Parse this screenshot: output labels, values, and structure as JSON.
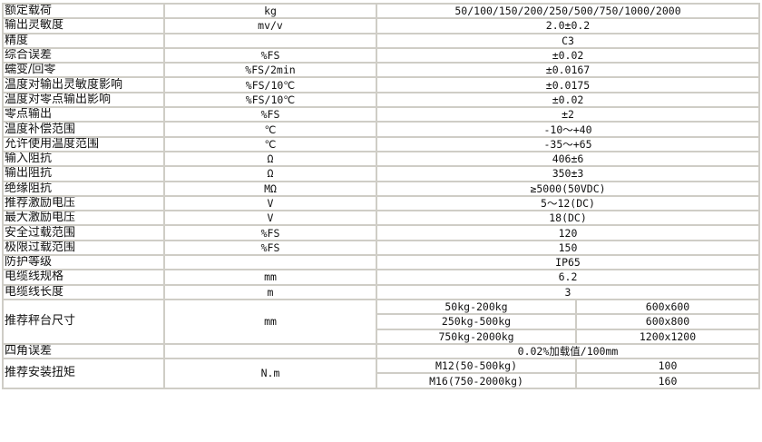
{
  "rows": [
    {
      "label": "额定载荷",
      "unit": "kg",
      "value": "50/100/150/200/250/500/750/1000/2000"
    },
    {
      "label": "输出灵敏度",
      "unit": "mv/v",
      "value": "2.0±0.2"
    },
    {
      "label": "精度",
      "unit": "",
      "value": "C3"
    },
    {
      "label": "综合误差",
      "unit": "%FS",
      "value": "±0.02"
    },
    {
      "label": "蠕变/回零",
      "unit": "%FS/2min",
      "value": "±0.0167"
    },
    {
      "label": "温度对输出灵敏度影响",
      "unit": "%FS/10℃",
      "value": "±0.0175"
    },
    {
      "label": "温度对零点输出影响",
      "unit": "%FS/10℃",
      "value": "±0.02"
    },
    {
      "label": "零点输出",
      "unit": "%FS",
      "value": "±2"
    },
    {
      "label": "温度补偿范围",
      "unit": "℃",
      "value": "-10～+40"
    },
    {
      "label": "允许使用温度范围",
      "unit": "℃",
      "value": "-35～+65"
    },
    {
      "label": "输入阻抗",
      "unit": "Ω",
      "value": "406±6"
    },
    {
      "label": "输出阻抗",
      "unit": "Ω",
      "value": "350±3"
    },
    {
      "label": "绝缘阻抗",
      "unit": "MΩ",
      "value": "≥5000(50VDC)"
    },
    {
      "label": "推荐激励电压",
      "unit": "V",
      "value": "5～12(DC)"
    },
    {
      "label": "最大激励电压",
      "unit": "V",
      "value": "18(DC)"
    },
    {
      "label": "安全过载范围",
      "unit": "%FS",
      "value": "120"
    },
    {
      "label": "极限过载范围",
      "unit": "%FS",
      "value": "150"
    },
    {
      "label": "防护等级",
      "unit": "",
      "value": "IP65"
    },
    {
      "label": "电缆线规格",
      "unit": "mm",
      "value": "6.2"
    },
    {
      "label": "电缆线长度",
      "unit": "m",
      "value": "3"
    },
    {
      "label": "推荐秤台尺寸",
      "unit": "mm",
      "sub": [
        {
          "range": "50kg-200kg",
          "value": "600x600"
        },
        {
          "range": "250kg-500kg",
          "value": "600x800"
        },
        {
          "range": "750kg-2000kg",
          "value": "1200x1200"
        }
      ]
    },
    {
      "label": "四角误差",
      "unit": "",
      "value": "0.02%加载值/100mm"
    },
    {
      "label": "推荐安装扭矩",
      "unit": "N.m",
      "sub": [
        {
          "range": "M12(50-500kg)",
          "value": "100"
        },
        {
          "range": "M16(750-2000kg)",
          "value": "160"
        }
      ]
    }
  ]
}
